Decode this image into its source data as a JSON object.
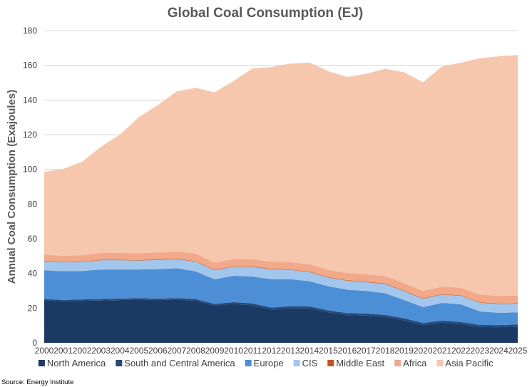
{
  "chart_data": {
    "type": "area",
    "stacked": true,
    "title": "Global Coal Consumption (EJ)",
    "ylabel": "Annual Coal Consumption (Exajoules)",
    "xlabel": "",
    "source": "Source: Energy Institute",
    "ylim": [
      0,
      180
    ],
    "yticks": [
      0,
      20,
      40,
      60,
      80,
      100,
      120,
      140,
      160,
      180
    ],
    "x": [
      "2000",
      "2001",
      "2002",
      "2003",
      "2004",
      "2005",
      "2006",
      "2007",
      "2008",
      "2009",
      "2010",
      "2011",
      "2012",
      "2013",
      "2014",
      "2015",
      "2016",
      "2017",
      "2018",
      "2019",
      "2020",
      "2021",
      "2022",
      "2023",
      "2024",
      "2025"
    ],
    "grid": "horizontal",
    "legend_position": "bottom",
    "series": [
      {
        "name": "North America",
        "color": "#1b3a63",
        "values": [
          24.5,
          23.9,
          24.2,
          24.4,
          24.6,
          24.9,
          24.6,
          24.9,
          24.2,
          21.5,
          22.5,
          21.6,
          19.1,
          19.9,
          19.8,
          17.5,
          15.9,
          15.7,
          14.9,
          13.0,
          10.3,
          11.6,
          10.8,
          9.1,
          9.0,
          9.4
        ]
      },
      {
        "name": "South and Central America",
        "color": "#244a7c",
        "values": [
          0.8,
          0.8,
          0.8,
          0.8,
          0.9,
          0.9,
          0.9,
          0.9,
          1.0,
          0.9,
          1.0,
          1.1,
          1.2,
          1.2,
          1.2,
          1.2,
          1.2,
          1.2,
          1.2,
          1.2,
          1.1,
          1.2,
          1.2,
          1.2,
          1.2,
          1.2
        ]
      },
      {
        "name": "Europe",
        "color": "#4d8fd6",
        "values": [
          16.5,
          16.6,
          16.4,
          17.1,
          16.8,
          16.5,
          17.0,
          17.2,
          16.0,
          14.2,
          15.2,
          15.5,
          16.4,
          15.6,
          14.5,
          13.9,
          13.5,
          13.0,
          12.5,
          10.5,
          9.2,
          10.2,
          10.2,
          7.8,
          7.1,
          6.9
        ]
      },
      {
        "name": "CIS",
        "color": "#a3c6ec",
        "values": [
          5.2,
          5.1,
          5.2,
          5.3,
          5.3,
          5.1,
          5.3,
          5.2,
          5.6,
          5.2,
          5.2,
          5.5,
          5.7,
          5.3,
          5.3,
          5.0,
          5.2,
          5.1,
          5.3,
          5.1,
          4.8,
          4.8,
          4.9,
          5.0,
          5.0,
          5.0
        ]
      },
      {
        "name": "Middle East",
        "color": "#c4541c",
        "values": [
          0.3,
          0.3,
          0.3,
          0.3,
          0.3,
          0.3,
          0.3,
          0.3,
          0.3,
          0.3,
          0.3,
          0.3,
          0.3,
          0.3,
          0.3,
          0.3,
          0.3,
          0.3,
          0.3,
          0.3,
          0.3,
          0.3,
          0.3,
          0.3,
          0.3,
          0.3
        ]
      },
      {
        "name": "Africa",
        "color": "#f1a98a",
        "values": [
          3.5,
          3.5,
          3.6,
          3.9,
          3.9,
          3.9,
          4.0,
          4.1,
          4.3,
          4.1,
          4.2,
          4.1,
          4.1,
          4.2,
          4.2,
          4.1,
          4.2,
          4.2,
          4.3,
          4.3,
          4.2,
          4.3,
          4.4,
          4.4,
          4.4,
          4.5
        ]
      },
      {
        "name": "Asia Pacific",
        "color": "#f6c6ad",
        "values": [
          47.8,
          50.1,
          53.9,
          61.2,
          68.2,
          78.5,
          84.9,
          92.4,
          95.6,
          98.2,
          102.6,
          110.1,
          112.2,
          114.5,
          116.3,
          114.6,
          113.0,
          115.6,
          119.5,
          121.6,
          120.3,
          126.9,
          129.7,
          136.3,
          138.2,
          138.7
        ]
      }
    ]
  }
}
